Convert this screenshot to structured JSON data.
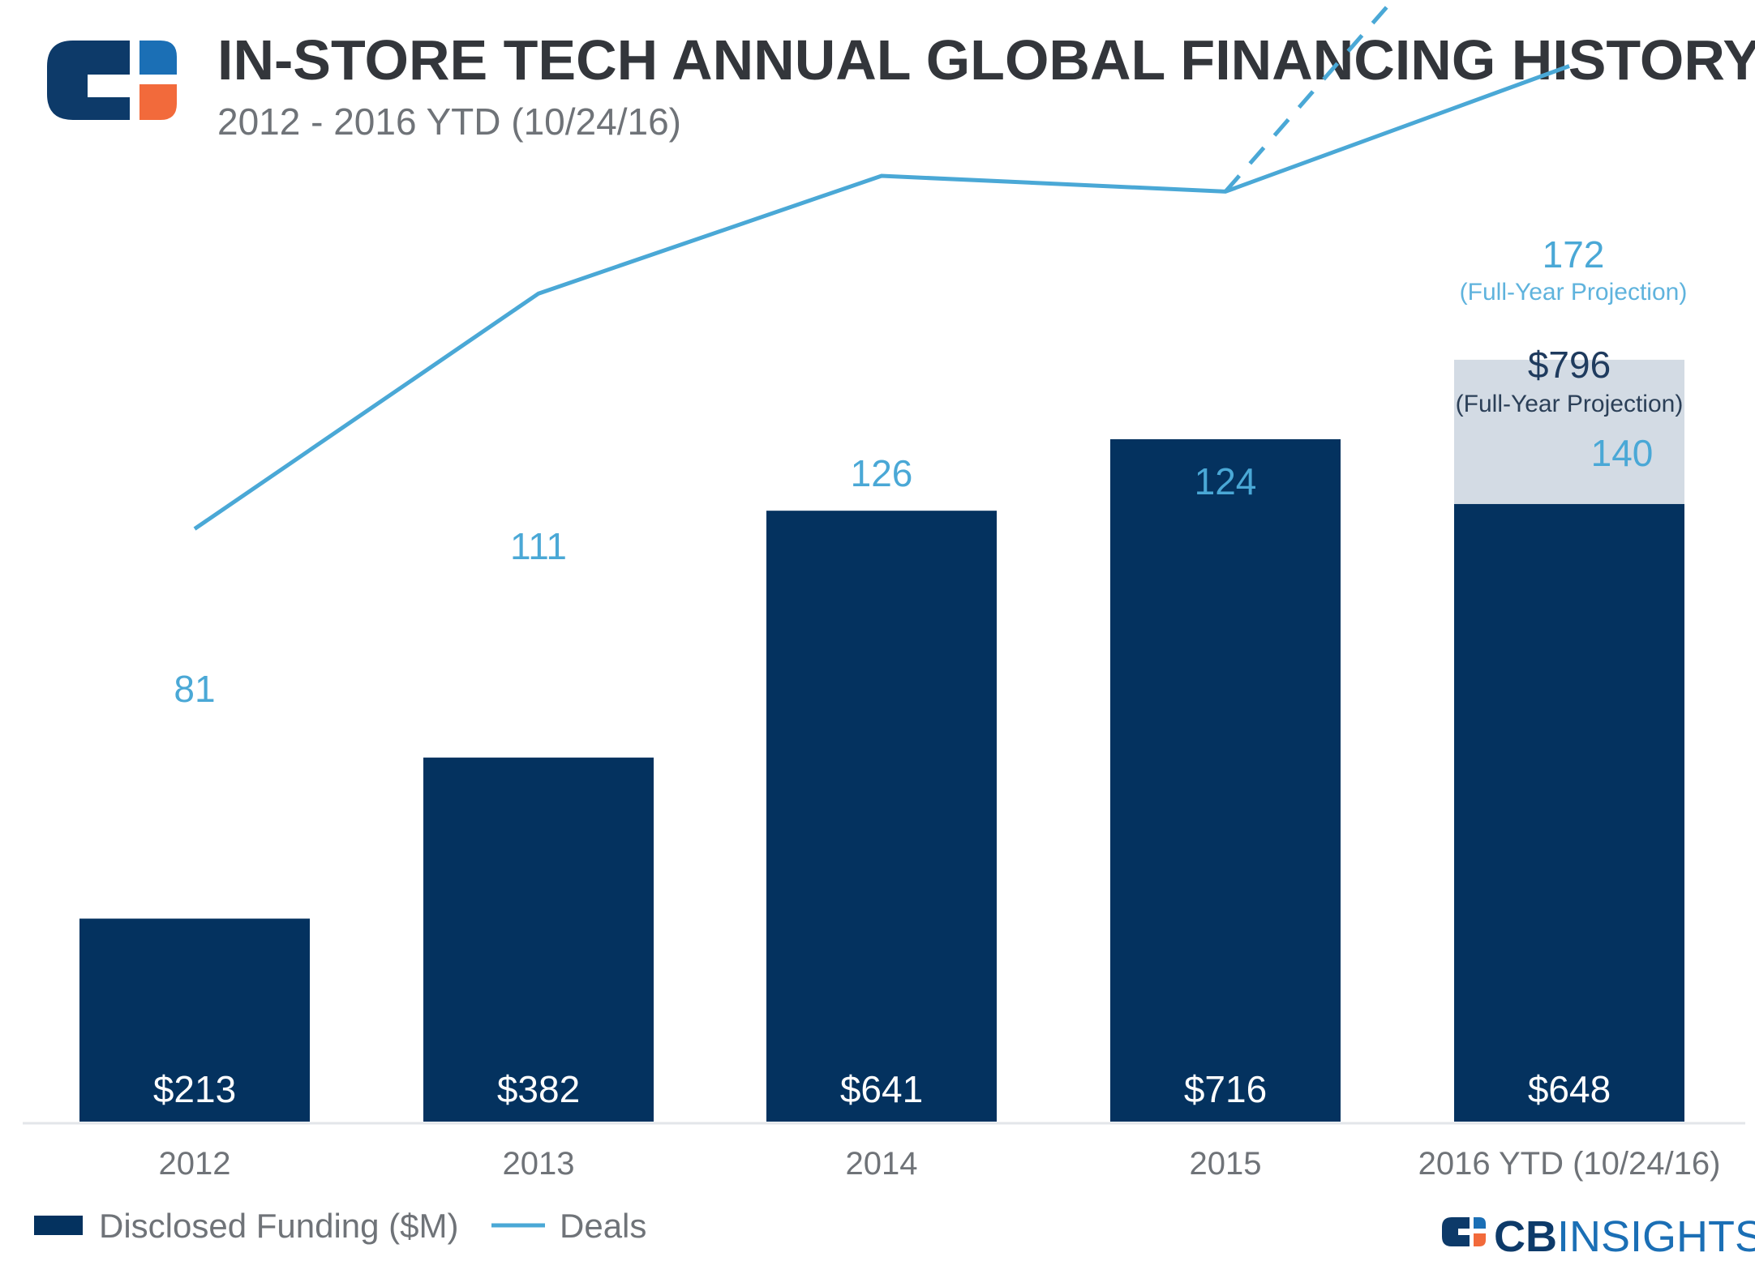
{
  "header": {
    "title": "IN-STORE TECH ANNUAL GLOBAL FINANCING HISTORY",
    "subtitle": "2012 - 2016 YTD (10/24/16)"
  },
  "colors": {
    "bar": "#04325f",
    "line": "#4aa8d6",
    "projection_box": "#d3dbe4",
    "logo_blue": "#0d3a69",
    "logo_light": "#1b6fb5",
    "logo_orange": "#f26a3b"
  },
  "chart_data": {
    "type": "bar",
    "title": "IN-STORE TECH ANNUAL GLOBAL FINANCING HISTORY",
    "subtitle": "2012 - 2016 YTD (10/24/16)",
    "categories": [
      "2012",
      "2013",
      "2014",
      "2015",
      "2016 YTD (10/24/16)"
    ],
    "series": [
      {
        "name": "Disclosed Funding ($M)",
        "type": "bar",
        "values": [
          213,
          382,
          641,
          716,
          648
        ],
        "labels": [
          "$213",
          "$382",
          "$641",
          "$716",
          "$648"
        ]
      },
      {
        "name": "Deals",
        "type": "line",
        "values": [
          81,
          111,
          126,
          124,
          140
        ],
        "labels": [
          "81",
          "111",
          "126",
          "124",
          "140"
        ]
      }
    ],
    "projection": {
      "funding_value": 796,
      "funding_label": "$796",
      "funding_note": "(Full-Year Projection)",
      "deals_value": 172,
      "deals_label": "172",
      "deals_note": "(Full-Year Projection)",
      "deals_from_category": "2015"
    },
    "legend": {
      "position": "bottom-left",
      "items": [
        "Disclosed Funding ($M)",
        "Deals"
      ]
    },
    "grid": false
  },
  "brand": {
    "name_bold": "CB",
    "name_regular": "INSIGHTS"
  }
}
